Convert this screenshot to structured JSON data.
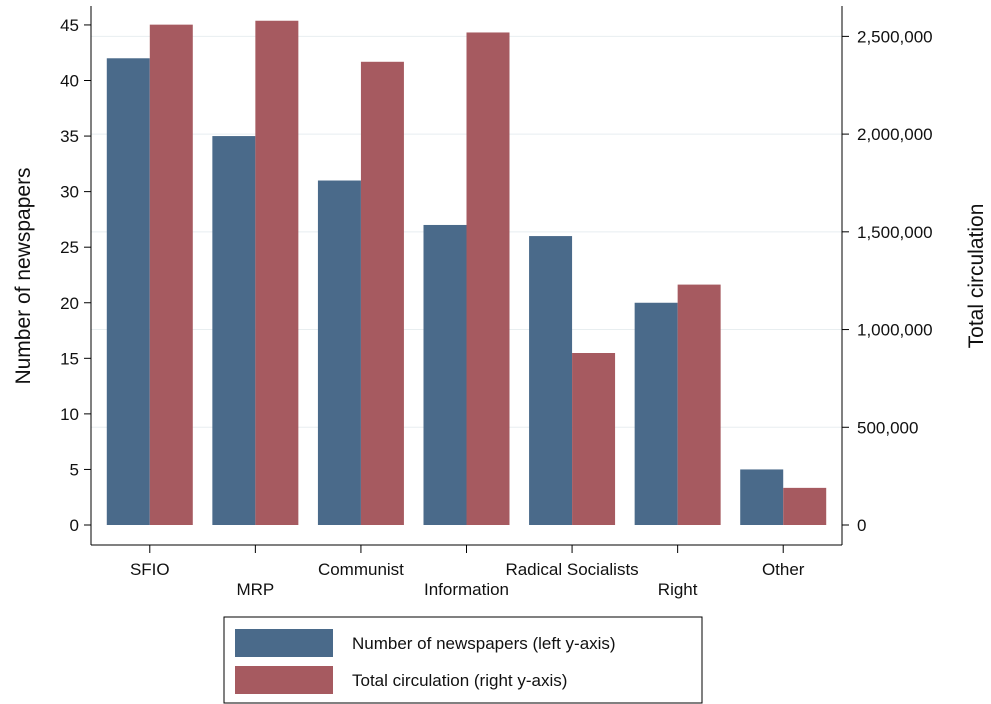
{
  "chart_data": {
    "type": "bar",
    "categories": [
      "SFIO",
      "MRP",
      "Communist",
      "Information",
      "Radical Socialists",
      "Right",
      "Other"
    ],
    "series": [
      {
        "name": "Number of newspapers (left y-axis)",
        "axis": "left",
        "color": "#4a6a8a",
        "values": [
          42,
          35,
          31,
          27,
          26,
          20,
          5
        ]
      },
      {
        "name": "Total circulation (right y-axis)",
        "axis": "right",
        "color": "#a65a60",
        "values": [
          2560000,
          2580000,
          2370000,
          2520000,
          880000,
          1230000,
          190000
        ]
      }
    ],
    "ylabel_left": "Number of newspapers",
    "ylabel_right": "Total circulation",
    "ylim_left": [
      0,
      46
    ],
    "ylim_right": [
      0,
      2644000
    ],
    "yticks_left": [
      "0",
      "5",
      "10",
      "15",
      "20",
      "25",
      "30",
      "35",
      "40",
      "45"
    ],
    "yticks_right": [
      "0",
      "500,000",
      "1,000,000",
      "1,500,000",
      "2,000,000",
      "2,500,000"
    ],
    "grid": true,
    "legend_position": "bottom"
  }
}
